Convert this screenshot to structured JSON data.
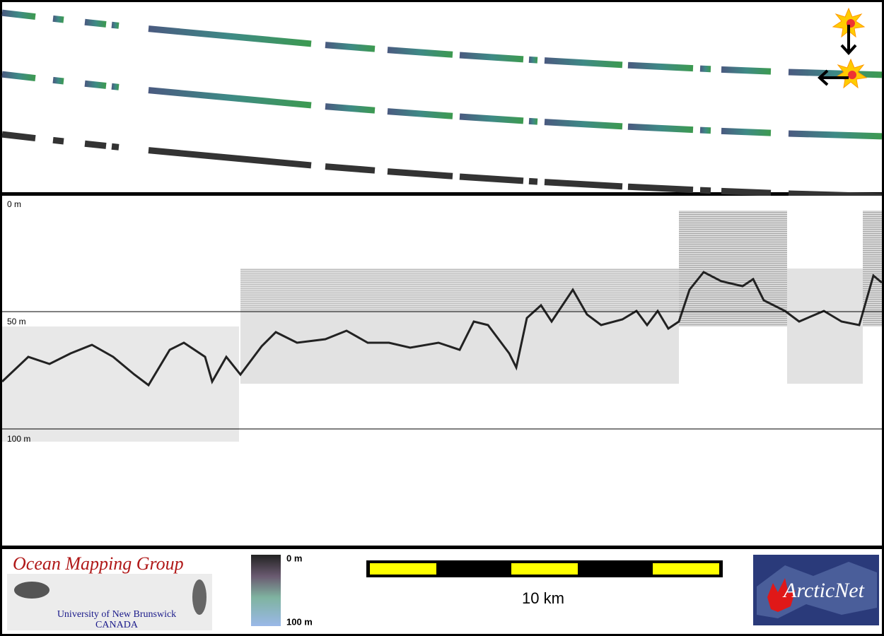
{
  "profile": {
    "depth_labels": [
      "0 m",
      "50 m",
      "100 m"
    ]
  },
  "footer": {
    "logo": {
      "title": "Ocean Mapping Group",
      "line1": "University of New Brunswick",
      "line2": "CANADA"
    },
    "colorbar": {
      "top_label": "0 m",
      "bottom_label": "100 m"
    },
    "scale_bar": {
      "label": "10 km"
    },
    "partner": "ArcticNet"
  }
}
